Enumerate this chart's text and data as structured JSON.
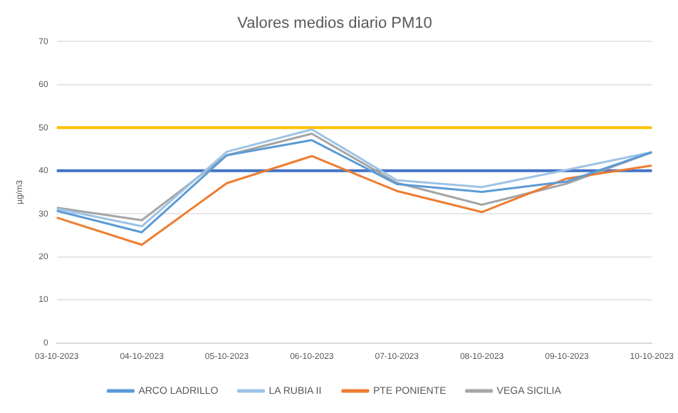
{
  "chart_data": {
    "type": "line",
    "title": "Valores medios diario PM10",
    "ylabel": "µg/m3",
    "categories": [
      "03-10-2023",
      "04-10-2023",
      "05-10-2023",
      "06-10-2023",
      "07-10-2023",
      "08-10-2023",
      "09-10-2023",
      "10-10-2023"
    ],
    "series": [
      {
        "name": "ARCO LADRILLO",
        "color": "#5b9bd5",
        "values": [
          30.7,
          25.7,
          43.6,
          47.1,
          36.9,
          35.1,
          37.5,
          44.3
        ]
      },
      {
        "name": "LA RUBIA II",
        "color": "#9dc3e6",
        "values": [
          31.2,
          27.1,
          44.4,
          49.6,
          37.8,
          36.2,
          40.2,
          44.3
        ]
      },
      {
        "name": "PTE PONIENTE",
        "color": "#ed7d31",
        "values": [
          29.1,
          22.8,
          37.1,
          43.4,
          35.3,
          30.4,
          38.2,
          41.2
        ]
      },
      {
        "name": "VEGA SICILIA",
        "color": "#a5a5a5",
        "values": [
          31.4,
          28.5,
          43.6,
          48.6,
          37.2,
          32.1,
          37.0,
          44.3
        ]
      }
    ],
    "ylim": [
      0,
      70
    ],
    "yticks": [
      0,
      10,
      20,
      30,
      40,
      50,
      60,
      70
    ],
    "grid": "y",
    "legend": "bottom",
    "marker": "none",
    "ref_lines": [
      {
        "axis": "y",
        "value": 50,
        "color": "#ffc000"
      },
      {
        "axis": "y",
        "value": 40,
        "color": "#4472c4"
      }
    ]
  }
}
